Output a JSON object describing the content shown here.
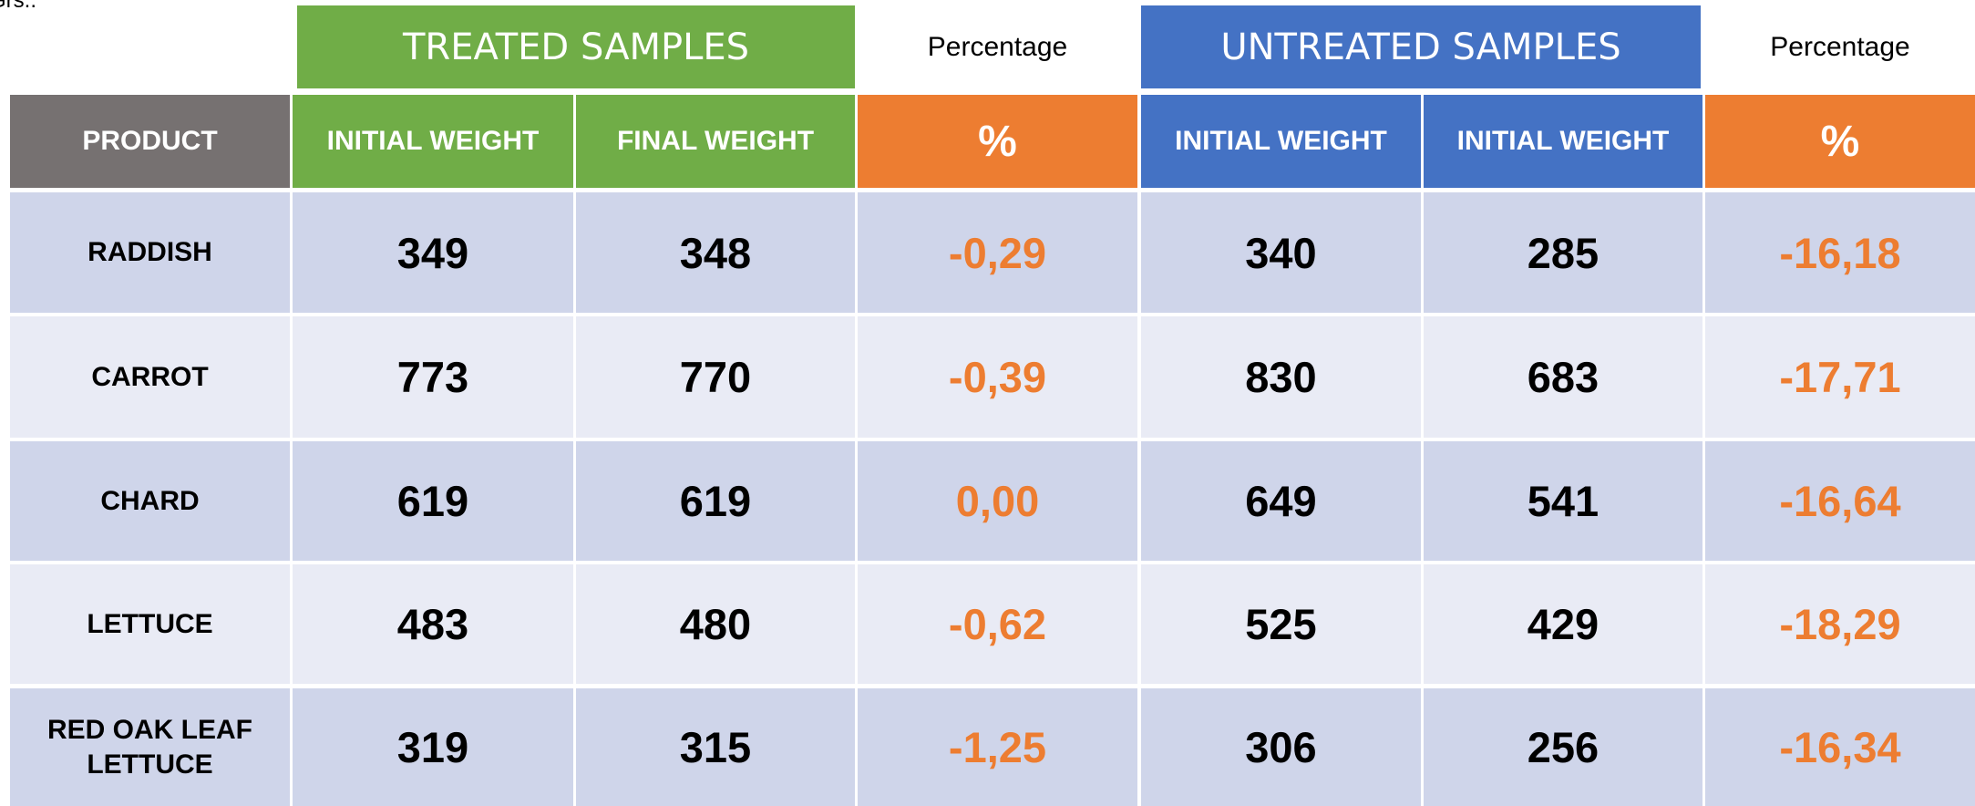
{
  "note_top": "Grs..",
  "header": {
    "treated": "TREATED SAMPLES",
    "untreated": "UNTREATED SAMPLES",
    "percentage_1": "Percentage",
    "percentage_2": "Percentage"
  },
  "table": {
    "columns": [
      "PRODUCT",
      "INITIAL WEIGHT",
      "FINAL WEIGHT",
      "%",
      "INITIAL WEIGHT",
      "INITIAL WEIGHT",
      "%"
    ],
    "rows": [
      [
        "RADDISH",
        "349",
        "348",
        "-0,29",
        "340",
        "285",
        "-16,18"
      ],
      [
        "CARROT",
        "773",
        "770",
        "-0,39",
        "830",
        "683",
        "-17,71"
      ],
      [
        "CHARD",
        "619",
        "619",
        "0,00",
        "649",
        "541",
        "-16,64"
      ],
      [
        "LETTUCE",
        "483",
        "480",
        "-0,62",
        "525",
        "429",
        "-18,29"
      ],
      [
        "RED OAK LEAF LETTUCE",
        "319",
        "315",
        "-1,25",
        "306",
        "256",
        "-16,34"
      ]
    ]
  }
}
